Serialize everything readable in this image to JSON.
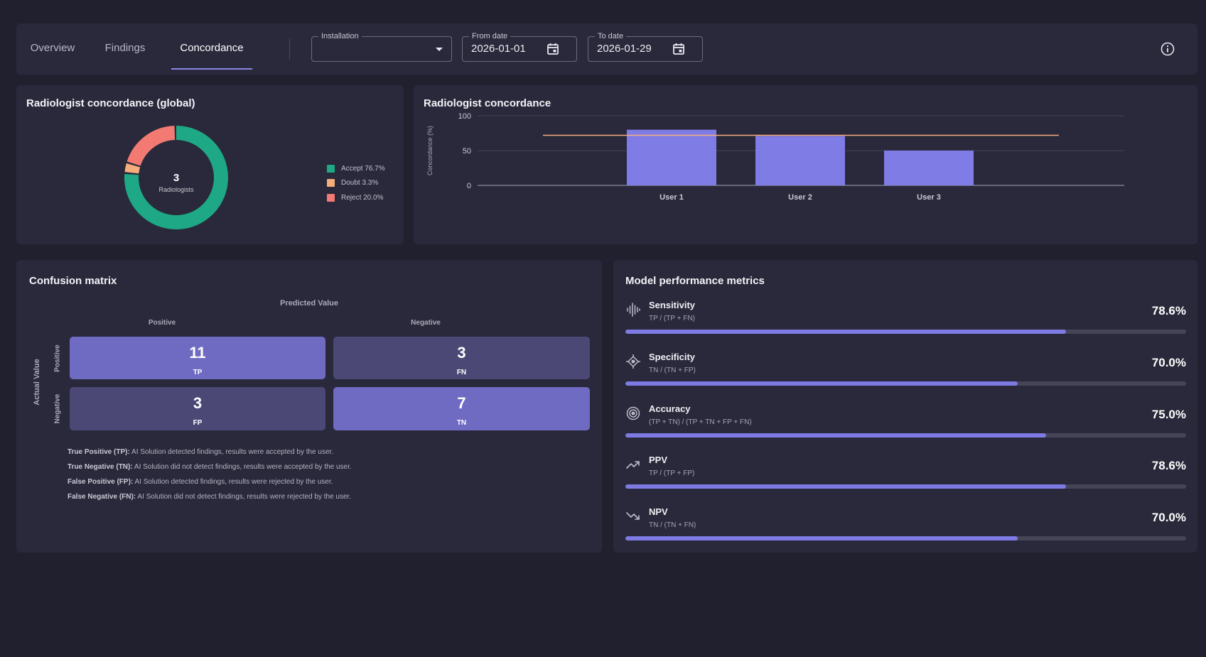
{
  "tabs": [
    {
      "label": "Overview",
      "active": false
    },
    {
      "label": "Findings",
      "active": false
    },
    {
      "label": "Concordance",
      "active": true
    }
  ],
  "filters": {
    "installation": {
      "label": "Installation",
      "value": ""
    },
    "from_date": {
      "label": "From date",
      "value": "2026-01-01"
    },
    "to_date": {
      "label": "To date",
      "value": "2026-01-29"
    }
  },
  "donut": {
    "title": "Radiologist concordance (global)",
    "center_value": "3",
    "center_label": "Radiologists",
    "segments": [
      {
        "name": "Accept",
        "label": "Accept 76.7%",
        "percent": 76.7,
        "color": "#1ea885"
      },
      {
        "name": "Doubt",
        "label": "Doubt 3.3%",
        "percent": 3.3,
        "color": "#f5ad7c"
      },
      {
        "name": "Reject",
        "label": "Reject 20.0%",
        "percent": 20.0,
        "color": "#f27a72"
      }
    ]
  },
  "chart_data": {
    "type": "bar",
    "title": "Radiologist concordance",
    "categories": [
      "User 1",
      "User 2",
      "User 3"
    ],
    "values": [
      80,
      71,
      50
    ],
    "reference_line": 72,
    "ylabel": "Concordance (%)",
    "xlabel": "",
    "ylim": [
      0,
      100
    ],
    "yticks": [
      0,
      50,
      100
    ],
    "bar_color": "#7f7ce6",
    "line_color": "#f5ad7c"
  },
  "confusion_matrix": {
    "title": "Confusion matrix",
    "predicted_label": "Predicted Value",
    "actual_label": "Actual Value",
    "col_labels": [
      "Positive",
      "Negative"
    ],
    "row_labels": [
      "Positive",
      "Negative"
    ],
    "cells": [
      {
        "value": "11",
        "abbr": "TP"
      },
      {
        "value": "3",
        "abbr": "FN"
      },
      {
        "value": "3",
        "abbr": "FP"
      },
      {
        "value": "7",
        "abbr": "TN"
      }
    ],
    "definitions": [
      {
        "term": "True Positive (TP):",
        "text": " AI Solution detected findings, results were accepted by the user."
      },
      {
        "term": "True Negative (TN):",
        "text": " AI Solution did not detect findings, results were accepted by the user."
      },
      {
        "term": "False Positive (FP):",
        "text": " AI Solution detected findings, results were rejected by the user."
      },
      {
        "term": "False Negative (FN):",
        "text": " AI Solution did not detect findings, results were rejected by the user."
      }
    ]
  },
  "metrics": {
    "title": "Model performance metrics",
    "items": [
      {
        "name": "Sensitivity",
        "formula": "TP / (TP + FN)",
        "value": "78.6%",
        "fraction": 0.786,
        "icon": "waveform-icon"
      },
      {
        "name": "Specificity",
        "formula": "TN / (TN + FP)",
        "value": "70.0%",
        "fraction": 0.7,
        "icon": "crosshair-icon"
      },
      {
        "name": "Accuracy",
        "formula": "(TP + TN) / (TP + TN + FP + FN)",
        "value": "75.0%",
        "fraction": 0.75,
        "icon": "target-icon"
      },
      {
        "name": "PPV",
        "formula": "TP / (TP + FP)",
        "value": "78.6%",
        "fraction": 0.786,
        "icon": "trending-up-icon"
      },
      {
        "name": "NPV",
        "formula": "TN / (TN + FN)",
        "value": "70.0%",
        "fraction": 0.7,
        "icon": "trending-down-icon"
      }
    ]
  }
}
